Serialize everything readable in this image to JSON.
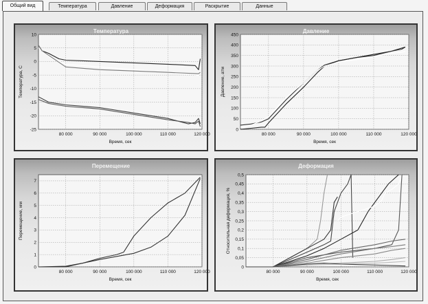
{
  "tabs": [
    {
      "label": "Общий вид",
      "active": true
    },
    {
      "label": "Температура",
      "active": false
    },
    {
      "label": "Давление",
      "active": false
    },
    {
      "label": "Деформация",
      "active": false
    },
    {
      "label": "Раскрытие",
      "active": false
    },
    {
      "label": "Данные",
      "active": false
    }
  ],
  "chart_data": [
    {
      "type": "line",
      "title": "Температура",
      "xlabel": "Время, сек",
      "ylabel": "Температура, С",
      "xlim": [
        72000,
        120000
      ],
      "ylim": [
        -25,
        10
      ],
      "x_ticks": [
        80000,
        90000,
        100000,
        110000,
        120000
      ],
      "x_tick_labels": [
        "80 000",
        "90 000",
        "100 000",
        "110 000",
        "120 000"
      ],
      "y_ticks": [
        10,
        5,
        0,
        -5,
        -10,
        -15,
        -20,
        -25
      ],
      "y_tick_labels": [
        "10",
        "5",
        "0",
        "-5",
        "-10",
        "-15",
        "-20",
        "-25"
      ],
      "grid": true,
      "series": [
        {
          "color": "#222222",
          "x": [
            72000,
            73000,
            75000,
            78000,
            80000,
            90000,
            100000,
            110000,
            118000,
            119000,
            119500
          ],
          "y": [
            6,
            4,
            3,
            1,
            0.5,
            0,
            -0.5,
            -1,
            -1.5,
            -3,
            1
          ]
        },
        {
          "color": "#ffffff",
          "x": [
            72000,
            74000,
            76000,
            78000,
            80000,
            90000,
            100000,
            110000,
            119000,
            119500
          ],
          "y": [
            5,
            3,
            1,
            0,
            -1,
            -2,
            -3,
            -4,
            -5,
            -4
          ]
        },
        {
          "color": "#7a7a7a",
          "x": [
            72000,
            73000,
            80000,
            90000,
            100000,
            110000,
            119000,
            119500
          ],
          "y": [
            6,
            4,
            -2,
            -3,
            -3.5,
            -4,
            -4.5,
            -4
          ]
        },
        {
          "color": "#3a3a3a",
          "x": [
            72000,
            75000,
            80000,
            90000,
            100000,
            110000,
            116000,
            118000,
            119000,
            119500
          ],
          "y": [
            -13,
            -15,
            -16,
            -17,
            -19,
            -21,
            -23,
            -22.5,
            -21,
            -23
          ]
        },
        {
          "color": "#555555",
          "x": [
            72000,
            75000,
            80000,
            90000,
            100000,
            110000,
            116000,
            118000,
            119000,
            119500
          ],
          "y": [
            -14,
            -15.5,
            -16.5,
            -17.5,
            -19.5,
            -21.5,
            -22.5,
            -23,
            -22,
            -24
          ]
        }
      ]
    },
    {
      "type": "line",
      "title": "Давление",
      "xlabel": "Время, сек",
      "ylabel": "Давление, атм",
      "xlim": [
        72000,
        120000
      ],
      "ylim": [
        0,
        450
      ],
      "x_ticks": [
        80000,
        90000,
        100000,
        110000,
        120000
      ],
      "x_tick_labels": [
        "80 000",
        "90 000",
        "100 000",
        "110 000",
        "120 000"
      ],
      "y_ticks": [
        450,
        400,
        350,
        300,
        250,
        200,
        150,
        100,
        50,
        0
      ],
      "y_tick_labels": [
        "450",
        "400",
        "350",
        "300",
        "250",
        "200",
        "150",
        "100",
        "50",
        "0"
      ],
      "grid": true,
      "series": [
        {
          "color": "#333333",
          "x": [
            72000,
            75000,
            78000,
            80000,
            85000,
            90000,
            94000,
            96000,
            100000,
            105000,
            110000,
            115000,
            118000,
            119000
          ],
          "y": [
            20,
            25,
            35,
            50,
            140,
            220,
            280,
            305,
            325,
            340,
            350,
            370,
            380,
            390
          ]
        },
        {
          "color": "#222222",
          "x": [
            72000,
            75000,
            78000,
            79000,
            80000,
            85000,
            90000,
            94000,
            96000,
            100000,
            105000,
            110000,
            115000,
            118000,
            119000
          ],
          "y": [
            0,
            5,
            10,
            10,
            30,
            120,
            200,
            270,
            300,
            325,
            340,
            355,
            370,
            385,
            390
          ]
        },
        {
          "color": "#ffffff",
          "x": [
            72000,
            75000,
            78000,
            80000,
            85000,
            90000,
            94000,
            96000,
            100000,
            105000,
            110000,
            115000,
            118000,
            119000
          ],
          "y": [
            10,
            20,
            40,
            60,
            150,
            220,
            280,
            300,
            320,
            330,
            345,
            360,
            365,
            370
          ]
        }
      ]
    },
    {
      "type": "line",
      "title": "Перемещение",
      "xlabel": "Время, сек",
      "ylabel": "Перемещение, мм",
      "xlim": [
        72000,
        120000
      ],
      "ylim": [
        0,
        7.5
      ],
      "x_ticks": [
        80000,
        90000,
        100000,
        110000,
        120000
      ],
      "x_tick_labels": [
        "80 000",
        "90 000",
        "100 000",
        "110 000",
        "120 000"
      ],
      "y_ticks": [
        7,
        6,
        5,
        4,
        3,
        2,
        1,
        0
      ],
      "y_tick_labels": [
        "7",
        "6",
        "5",
        "4",
        "3",
        "2",
        "1",
        "0"
      ],
      "grid": true,
      "series": [
        {
          "color": "#333333",
          "x": [
            72000,
            80000,
            85000,
            90000,
            95000,
            97000,
            100000,
            105000,
            110000,
            115000,
            119500
          ],
          "y": [
            0,
            0,
            0.3,
            0.7,
            1.0,
            1.2,
            2.5,
            4.0,
            5.2,
            6.0,
            7.3
          ]
        },
        {
          "color": "#333333",
          "x": [
            72000,
            80000,
            85000,
            90000,
            95000,
            100000,
            105000,
            110000,
            115000,
            119500
          ],
          "y": [
            0,
            0.05,
            0.3,
            0.6,
            0.85,
            1.1,
            1.6,
            2.5,
            4.2,
            7.2
          ]
        }
      ]
    },
    {
      "type": "line",
      "title": "Деформация",
      "xlabel": "Время, сек",
      "ylabel": "Относительная деформация, %",
      "xlim": [
        72000,
        120000
      ],
      "ylim": [
        0,
        0.5
      ],
      "x_ticks": [
        80000,
        90000,
        100000,
        110000,
        120000
      ],
      "x_tick_labels": [
        "80 000",
        "90 000",
        "100 000",
        "110 000",
        "120 000"
      ],
      "y_ticks": [
        0.5,
        0.45,
        0.4,
        0.35,
        0.3,
        0.25,
        0.2,
        0.15,
        0.1,
        0.05,
        0
      ],
      "y_tick_labels": [
        "0,5",
        "0,45",
        "0,4",
        "0,35",
        "0,3",
        "0,25",
        "0,2",
        "0,15",
        "0,1",
        "0,05",
        "0"
      ],
      "grid": true,
      "series": [
        {
          "color": "#999999",
          "x": [
            72000,
            80000,
            85000,
            90000,
            93000,
            94000,
            95000,
            96000
          ],
          "y": [
            0,
            0,
            0.05,
            0.1,
            0.15,
            0.25,
            0.4,
            0.5
          ]
        },
        {
          "color": "#444444",
          "x": [
            72000,
            80000,
            85000,
            90000,
            95000,
            97000,
            98000,
            100000,
            102000,
            103000,
            103500
          ],
          "y": [
            0,
            0,
            0.04,
            0.08,
            0.12,
            0.14,
            0.3,
            0.4,
            0.45,
            0.5,
            0.05
          ]
        },
        {
          "color": "#333333",
          "x": [
            72000,
            80000,
            85000,
            90000,
            95000,
            97000,
            98000,
            99000
          ],
          "y": [
            0,
            0,
            0.05,
            0.1,
            0.15,
            0.2,
            0.35,
            0.38
          ]
        },
        {
          "color": "#222222",
          "x": [
            72000,
            80000,
            85000,
            90000,
            95000,
            100000,
            105000,
            108000,
            110000,
            112000,
            114000,
            117000
          ],
          "y": [
            0,
            0,
            0.03,
            0.06,
            0.1,
            0.15,
            0.2,
            0.3,
            0.35,
            0.4,
            0.45,
            0.5
          ]
        },
        {
          "color": "#ffffff",
          "x": [
            99000,
            100000,
            105000,
            110000,
            112000,
            113000,
            115000,
            117000,
            118000
          ],
          "y": [
            0.25,
            0.27,
            0.3,
            0.33,
            0.36,
            0.4,
            0.42,
            0.45,
            0.5
          ]
        },
        {
          "color": "#555555",
          "x": [
            72000,
            80000,
            90000,
            100000,
            110000,
            115000,
            117000,
            118000
          ],
          "y": [
            0,
            0,
            0.05,
            0.08,
            0.1,
            0.12,
            0.2,
            0.5
          ]
        },
        {
          "color": "#666666",
          "x": [
            72000,
            80000,
            90000,
            100000,
            110000,
            115000,
            119000
          ],
          "y": [
            0,
            0,
            0.04,
            0.09,
            0.12,
            0.14,
            0.15
          ]
        },
        {
          "color": "#777777",
          "x": [
            72000,
            80000,
            90000,
            100000,
            110000,
            115000,
            119000
          ],
          "y": [
            0,
            0,
            0.03,
            0.07,
            0.1,
            0.11,
            0.12
          ]
        },
        {
          "color": "#888888",
          "x": [
            72000,
            80000,
            90000,
            100000,
            110000,
            115000,
            119000
          ],
          "y": [
            0,
            0,
            0.02,
            0.05,
            0.07,
            0.09,
            0.1
          ]
        },
        {
          "color": "#aaaaaa",
          "x": [
            72000,
            80000,
            90000,
            100000,
            110000,
            115000,
            119000
          ],
          "y": [
            0,
            0,
            0.015,
            0.02,
            0.03,
            0.04,
            0.05
          ]
        },
        {
          "color": "#bbbbbb",
          "x": [
            72000,
            80000,
            90000,
            100000,
            110000,
            115000,
            119000
          ],
          "y": [
            0,
            0,
            0.01,
            0.015,
            0.02,
            0.025,
            0.03
          ]
        },
        {
          "color": "#444444",
          "x": [
            72000,
            80000,
            90000,
            95000,
            100000,
            110000,
            119000
          ],
          "y": [
            0,
            0,
            0.015,
            0.02,
            0.015,
            0.01,
            0.005
          ]
        }
      ]
    }
  ]
}
